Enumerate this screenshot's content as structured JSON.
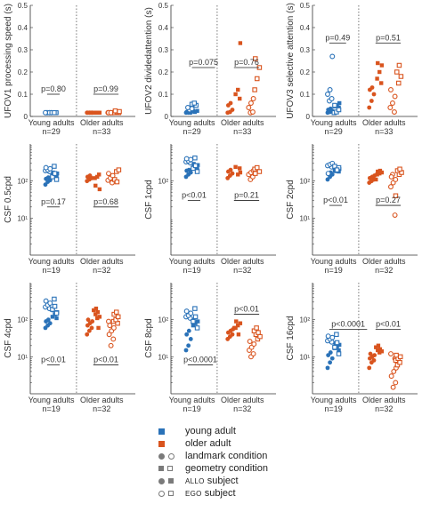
{
  "colors": {
    "young": "#2a72b8",
    "older": "#d9541e",
    "grey": "#7a7a7a",
    "axis": "#333333"
  },
  "legend": {
    "young": "young adult",
    "older": "older adult",
    "landmark": "landmark condition",
    "geometry": "geometry condition",
    "allo_prefix": "ALLO",
    "ego_prefix": "EGO",
    "subject": "subject"
  },
  "chart_data": [
    {
      "type": "scatter",
      "ylabel": "UFOV1 processing speed (s)",
      "scale": "linear",
      "ylim": [
        0,
        0.5
      ],
      "yticks": [
        "0",
        "0.1",
        "0.2",
        "0.3",
        "0.4",
        "0.5"
      ],
      "groups": [
        {
          "label": "Young adults",
          "n": "n=29"
        },
        {
          "label": "Older adults",
          "n": "n=33"
        }
      ],
      "annotations": [
        {
          "text": "p=0.80",
          "x1": 0.9,
          "x2": 1.2,
          "y": 0.1
        },
        {
          "text": "p=0.99",
          "x1": 2.0,
          "x2": 2.6,
          "y": 0.1
        }
      ],
      "series": [
        {
          "group": "young",
          "values": [
            0.017,
            0.017,
            0.017,
            0.017,
            0.017,
            0.017,
            0.017,
            0.017,
            0.017,
            0.017,
            0.017,
            0.017,
            0.017,
            0.017,
            0.017,
            0.017
          ]
        },
        {
          "group": "older",
          "values": [
            0.017,
            0.017,
            0.017,
            0.017,
            0.017,
            0.017,
            0.017,
            0.017,
            0.017,
            0.017,
            0.017,
            0.017,
            0.017,
            0.017,
            0.017,
            0.017,
            0.017,
            0.017,
            0.02,
            0.022,
            0.025
          ]
        }
      ]
    },
    {
      "type": "scatter",
      "ylabel": "UFOV2 dividedattention (s)",
      "scale": "linear",
      "ylim": [
        0,
        0.5
      ],
      "yticks": [
        "0",
        "0.1",
        "0.2",
        "0.3",
        "0.4",
        "0.5"
      ],
      "groups": [
        {
          "label": "Young adults",
          "n": "n=29"
        },
        {
          "label": "Older adults",
          "n": "n=33"
        }
      ],
      "annotations": [
        {
          "text": "p=0.075",
          "x1": 1.0,
          "x2": 1.55,
          "y": 0.22
        },
        {
          "text": "p=0.76",
          "x1": 2.0,
          "x2": 2.6,
          "y": 0.22
        }
      ],
      "series": [
        {
          "group": "young",
          "values": [
            0.017,
            0.017,
            0.017,
            0.02,
            0.02,
            0.025,
            0.025,
            0.03,
            0.035,
            0.04,
            0.05,
            0.055,
            0.06
          ]
        },
        {
          "group": "older",
          "values": [
            0.017,
            0.02,
            0.03,
            0.05,
            0.06,
            0.08,
            0.1,
            0.12,
            0.33,
            0.017,
            0.02,
            0.04,
            0.06,
            0.08,
            0.12,
            0.17,
            0.22,
            0.26
          ]
        }
      ]
    },
    {
      "type": "scatter",
      "ylabel": "UFOV3 selective attention (s)",
      "scale": "linear",
      "ylim": [
        0,
        0.5
      ],
      "yticks": [
        "0",
        "0.1",
        "0.2",
        "0.3",
        "0.4",
        "0.5"
      ],
      "groups": [
        {
          "label": "Young adults",
          "n": "n=29"
        },
        {
          "label": "Older adults",
          "n": "n=33"
        }
      ],
      "annotations": [
        {
          "text": "p=0.49",
          "x1": 0.9,
          "x2": 1.3,
          "y": 0.33
        },
        {
          "text": "p=0.51",
          "x1": 2.0,
          "x2": 2.6,
          "y": 0.33
        }
      ],
      "series": [
        {
          "group": "young",
          "values": [
            0.017,
            0.02,
            0.025,
            0.03,
            0.035,
            0.04,
            0.045,
            0.05,
            0.06,
            0.07,
            0.08,
            0.1,
            0.12,
            0.27,
            0.017,
            0.02,
            0.03,
            0.05
          ]
        },
        {
          "group": "older",
          "values": [
            0.04,
            0.07,
            0.1,
            0.12,
            0.13,
            0.15,
            0.17,
            0.2,
            0.23,
            0.24,
            0.02,
            0.04,
            0.06,
            0.09,
            0.12,
            0.15,
            0.18,
            0.2,
            0.23
          ]
        }
      ]
    },
    {
      "type": "scatter",
      "ylabel": "CSF 0.5cpd",
      "scale": "log",
      "ylim": [
        1,
        1000
      ],
      "yticks": [
        "10¹",
        "10²"
      ],
      "ytick_values": [
        10,
        100
      ],
      "groups": [
        {
          "label": "Young adults",
          "n": "n=19"
        },
        {
          "label": "Older adults",
          "n": "n=32"
        }
      ],
      "annotations": [
        {
          "text": "p=0.17",
          "x1": 0.9,
          "x2": 1.2,
          "y": 20
        },
        {
          "text": "p=0.68",
          "x1": 2.0,
          "x2": 2.6,
          "y": 20
        }
      ],
      "series": [
        {
          "group": "young",
          "values": [
            80,
            95,
            105,
            115,
            125,
            135,
            140,
            150,
            160,
            170,
            180,
            190,
            200,
            215,
            230,
            250,
            110,
            130,
            160
          ]
        },
        {
          "group": "older",
          "values": [
            100,
            110,
            120,
            130,
            140,
            150,
            120,
            130,
            60,
            75,
            90,
            105,
            120,
            140,
            160,
            180,
            200,
            110,
            95
          ]
        }
      ]
    },
    {
      "type": "scatter",
      "ylabel": "CSF 1cpd",
      "scale": "log",
      "ylim": [
        1,
        1000
      ],
      "yticks": [
        "10²"
      ],
      "ytick_values": [
        100
      ],
      "groups": [
        {
          "label": "Young adults",
          "n": "n=19"
        },
        {
          "label": "Older adults",
          "n": "n=32"
        }
      ],
      "annotations": [
        {
          "text": "p<0.01",
          "x1": 0.9,
          "x2": 1.2,
          "y": 30
        },
        {
          "text": "p=0.21",
          "x1": 2.0,
          "x2": 2.6,
          "y": 30
        }
      ],
      "series": [
        {
          "group": "young",
          "values": [
            130,
            150,
            170,
            190,
            200,
            210,
            230,
            250,
            270,
            290,
            310,
            330,
            350,
            380,
            400,
            420,
            180,
            220,
            260
          ]
        },
        {
          "group": "older",
          "values": [
            120,
            140,
            160,
            180,
            200,
            220,
            240,
            150,
            170,
            110,
            130,
            150,
            170,
            190,
            210,
            230,
            180,
            160
          ]
        }
      ]
    },
    {
      "type": "scatter",
      "ylabel": "CSF 2cpd",
      "scale": "log",
      "ylim": [
        1,
        1000
      ],
      "yticks": [
        "10¹",
        "10²"
      ],
      "ytick_values": [
        10,
        100
      ],
      "groups": [
        {
          "label": "Young adults",
          "n": "n=19"
        },
        {
          "label": "Older adults",
          "n": "n=32"
        }
      ],
      "annotations": [
        {
          "text": "p<0.01",
          "x1": 0.9,
          "x2": 1.2,
          "y": 22
        },
        {
          "text": "p=0.27",
          "x1": 2.0,
          "x2": 2.6,
          "y": 22
        }
      ],
      "series": [
        {
          "group": "young",
          "values": [
            110,
            130,
            150,
            160,
            170,
            180,
            190,
            200,
            210,
            220,
            240,
            260,
            280,
            300,
            160,
            190,
            230,
            250,
            200
          ]
        },
        {
          "group": "older",
          "values": [
            90,
            100,
            110,
            120,
            130,
            140,
            150,
            160,
            170,
            180,
            190,
            110,
            150,
            12,
            70,
            90,
            110,
            130,
            150,
            170,
            190,
            210,
            40
          ]
        }
      ]
    },
    {
      "type": "scatter",
      "ylabel": "CSF 4cpd",
      "scale": "log",
      "ylim": [
        1,
        1000
      ],
      "yticks": [
        "10¹",
        "10²"
      ],
      "ytick_values": [
        10,
        100
      ],
      "groups": [
        {
          "label": "Young adults",
          "n": "n=19"
        },
        {
          "label": "Older adults",
          "n": "n=32"
        }
      ],
      "annotations": [
        {
          "text": "p<0.01",
          "x1": 0.9,
          "x2": 1.2,
          "y": 6
        },
        {
          "text": "p<0.01",
          "x1": 2.0,
          "x2": 2.6,
          "y": 6
        }
      ],
      "series": [
        {
          "group": "young",
          "values": [
            60,
            70,
            80,
            90,
            100,
            110,
            120,
            140,
            160,
            180,
            200,
            220,
            250,
            280,
            320,
            360,
            150,
            190,
            230
          ]
        },
        {
          "group": "older",
          "values": [
            40,
            50,
            60,
            70,
            80,
            90,
            100,
            110,
            120,
            140,
            160,
            180,
            200,
            60,
            90,
            20,
            30,
            40,
            50,
            60,
            70,
            80,
            90,
            100,
            120,
            140,
            160
          ]
        }
      ]
    },
    {
      "type": "scatter",
      "ylabel": "CSF 8cpd",
      "scale": "log",
      "ylim": [
        1,
        1000
      ],
      "yticks": [
        "10¹",
        "10²"
      ],
      "ytick_values": [
        10,
        100
      ],
      "groups": [
        {
          "label": "Young adults",
          "n": "n=19"
        },
        {
          "label": "Older adults",
          "n": "n=32"
        }
      ],
      "annotations": [
        {
          "text": "p<0.0001",
          "x1": 0.9,
          "x2": 1.5,
          "y": 6
        },
        {
          "text": "p<0.01",
          "x1": 2.0,
          "x2": 2.6,
          "y": 140
        }
      ],
      "series": [
        {
          "group": "young",
          "values": [
            15,
            20,
            30,
            40,
            50,
            60,
            70,
            80,
            90,
            100,
            110,
            120,
            130,
            150,
            170,
            200,
            60,
            90,
            120
          ]
        },
        {
          "group": "older",
          "values": [
            30,
            35,
            40,
            45,
            50,
            55,
            60,
            70,
            80,
            90,
            40,
            60,
            10,
            12,
            15,
            18,
            22,
            26,
            30,
            35,
            40,
            45,
            50,
            60
          ]
        }
      ]
    },
    {
      "type": "scatter",
      "ylabel": "CSF 16cpd",
      "scale": "log",
      "ylim": [
        1,
        1000
      ],
      "yticks": [
        "10¹",
        "10²"
      ],
      "ytick_values": [
        10,
        100
      ],
      "groups": [
        {
          "label": "Young adults",
          "n": "n=19"
        },
        {
          "label": "Older adults",
          "n": "n=32"
        }
      ],
      "annotations": [
        {
          "text": "p<0.0001",
          "x1": 0.9,
          "x2": 1.8,
          "y": 55
        },
        {
          "text": "p<0.01",
          "x1": 2.0,
          "x2": 2.6,
          "y": 55
        }
      ],
      "series": [
        {
          "group": "young",
          "values": [
            5,
            7,
            9,
            11,
            13,
            15,
            17,
            19,
            21,
            23,
            25,
            27,
            30,
            33,
            36,
            40,
            12,
            18,
            24
          ]
        },
        {
          "group": "older",
          "values": [
            5,
            7,
            8,
            9,
            10,
            11,
            12,
            13,
            14,
            15,
            16,
            18,
            20,
            9,
            12,
            1.5,
            2,
            3,
            4,
            5,
            6,
            7,
            8,
            9,
            10,
            11
          ]
        }
      ]
    }
  ]
}
